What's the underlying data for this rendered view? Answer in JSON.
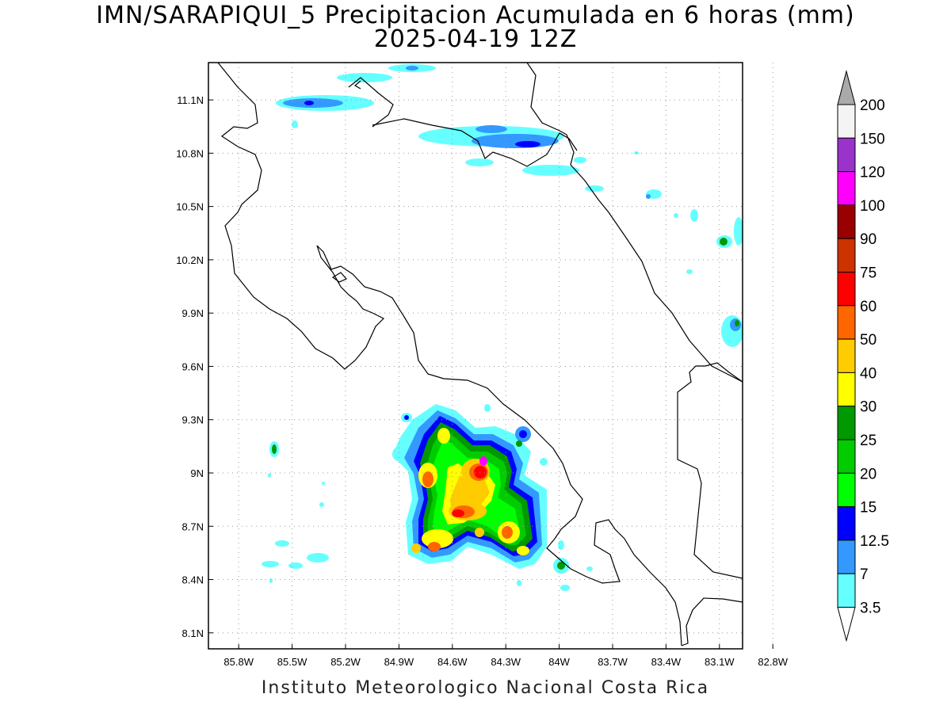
{
  "title": "IMN/SARAPIQUI_5 Precipitacion Acumulada en 6 horas (mm)",
  "subtitle": "2025-04-19 12Z",
  "footer": "Instituto Meteorologico Nacional Costa Rica",
  "map": {
    "lon_range": [
      -85.97,
      -82.97
    ],
    "lat_range": [
      8.01,
      11.31
    ],
    "x_ticks": [
      "85.8W",
      "85.5W",
      "85.2W",
      "84.9W",
      "84.6W",
      "84.3W",
      "84W",
      "83.7W",
      "83.4W",
      "83.1W",
      "82.8W"
    ],
    "y_ticks": [
      "11.1N",
      "10.8N",
      "10.5N",
      "10.2N",
      "9.9N",
      "9.6N",
      "9.3N",
      "9N",
      "8.7N",
      "8.4N",
      "8.1N"
    ],
    "grid": true
  },
  "legend": {
    "labels": [
      "200",
      "150",
      "120",
      "100",
      "90",
      "75",
      "60",
      "50",
      "40",
      "30",
      "25",
      "20",
      "15",
      "12.5",
      "7",
      "3.5"
    ],
    "colors": [
      "#f4f4f4",
      "#9933cc",
      "#ff00ff",
      "#990000",
      "#cc3300",
      "#ff0000",
      "#ff6600",
      "#ffcc00",
      "#ffff00",
      "#009900",
      "#00cc00",
      "#00ff00",
      "#0000ff",
      "#3399ff",
      "#66ffff"
    ],
    "over_color": "#aaaaaa",
    "under_color": "#ffffff"
  },
  "colors": {
    "coast": "#000000",
    "grid": "#999999"
  }
}
